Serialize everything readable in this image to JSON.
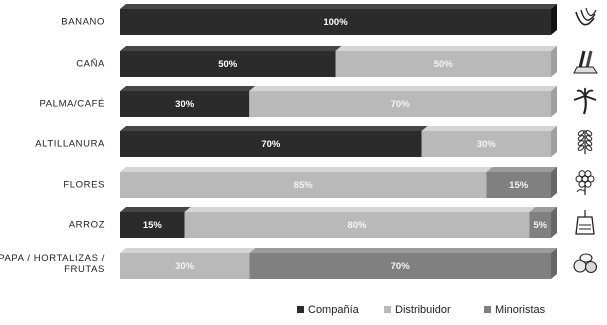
{
  "chart_data": {
    "type": "bar",
    "orientation": "horizontal",
    "stacked": true,
    "categories": [
      "BANANO",
      "CAÑA",
      "PALMA/CAFÉ",
      "ALTILLANURA",
      "FLORES",
      "ARROZ",
      "PAPA / HORTALIZAS / FRUTAS"
    ],
    "category_label_lines": [
      [
        "BANANO"
      ],
      [
        "CAÑA"
      ],
      [
        "PALMA/CAFÉ"
      ],
      [
        "ALTILLANURA"
      ],
      [
        "FLORES"
      ],
      [
        "ARROZ"
      ],
      [
        "PAPA / HORTALIZAS /",
        "FRUTAS"
      ]
    ],
    "series": [
      {
        "name": "Compañía",
        "color": "#2b2b2b",
        "values": [
          100,
          50,
          30,
          70,
          0,
          15,
          0
        ]
      },
      {
        "name": "Distribuidor",
        "color": "#b9b9b9",
        "values": [
          0,
          50,
          70,
          30,
          85,
          80,
          30
        ]
      },
      {
        "name": "Minoristas",
        "color": "#808080",
        "values": [
          0,
          0,
          0,
          0,
          15,
          5,
          70
        ]
      }
    ],
    "data_label_suffix": "%",
    "xlim": [
      0,
      100
    ],
    "title": "",
    "xlabel": "",
    "ylabel": "",
    "grid": false,
    "legend_position": "bottom-right"
  },
  "row_icons": [
    "banana-icon",
    "sugarcane-icon",
    "palm-tree-icon",
    "wheat-icon",
    "flower-icon",
    "rice-bag-icon",
    "vegetables-icon"
  ]
}
